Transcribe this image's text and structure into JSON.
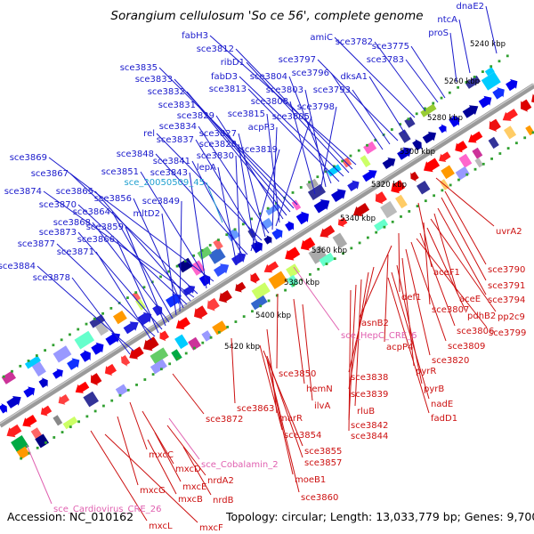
{
  "title": "Sorangium cellulosum 'So ce 56', complete genome",
  "footer": {
    "accession": "Accession: NC_010162",
    "info": "Topology: circular; Length: 13,033,779 bp; Genes: 9,700"
  },
  "colors": {
    "forward_label": "#1a1acc",
    "reverse_label": "#cc1010",
    "feature_label": "#e060b0",
    "misc_label": "#20a0d0",
    "backbone": "#808080",
    "tick": "#30a030"
  },
  "kbp_ticks": [
    "5240 kbp",
    "5260 kbp",
    "5280 kbp",
    "5300 kbp",
    "5320 kbp",
    "5340 kbp",
    "5360 kbp",
    "5380 kbp",
    "5400 kbp",
    "5420 kbp"
  ],
  "forward_genes": [
    "dnaE2",
    "ntcA",
    "proS",
    "sce3775",
    "sce3783",
    "sce3782",
    "amiC",
    "dksA1",
    "sce3797",
    "sce3793",
    "sce3796",
    "fabH3",
    "sce3812",
    "ribD1",
    "fabD3",
    "sce3813",
    "sce3804",
    "sce3803",
    "sce3798",
    "sce3808",
    "sce3835",
    "sce3833",
    "sce3832",
    "sce3831",
    "sce3829",
    "sce3815",
    "sce3805",
    "acpP3",
    "sce3834",
    "sce3827",
    "rel",
    "sce3837",
    "sce3828",
    "sce3819",
    "sce3848",
    "sce3841",
    "sce3830",
    "lepA",
    "sce3869",
    "sce3851",
    "sce3843",
    "sce3867",
    "sce3874",
    "sce3865",
    "sce3870",
    "sce3856",
    "sce3849",
    "mltD2",
    "sce3864",
    "sce3868",
    "sce3859",
    "sce3873",
    "sce3866",
    "sce3877",
    "sce3871",
    "sce3884",
    "sce3878"
  ],
  "misc_feature": "sce_20050509_45",
  "reverse_genes": [
    "uvrA2",
    "sce3790",
    "sce3791",
    "aceF1",
    "sce3794",
    "aceE",
    "pp2c9",
    "sce3807",
    "pdhB2",
    "def1",
    "sce3806",
    "sce3799",
    "sce3809",
    "asnB2",
    "sce3820",
    "acpP4",
    "pyrR",
    "sce3838",
    "sce3850",
    "sce3839",
    "pyrB",
    "hemN",
    "ilvA",
    "rluB",
    "nadE",
    "sce3842",
    "fadD1",
    "sce3844",
    "marR",
    "sce3872",
    "sce3863",
    "sce3854",
    "sce3855",
    "sce3857",
    "moeB1",
    "sce3860",
    "mxcC",
    "mxcD",
    "nrdA2",
    "mxcG",
    "mxcE",
    "mxcB",
    "nrdB",
    "mxcL",
    "mxcF"
  ],
  "features": [
    "sce_HepC_CRE_6",
    "sce_Cobalamin_2",
    "sce_Cardiovirus_CRE_26"
  ]
}
